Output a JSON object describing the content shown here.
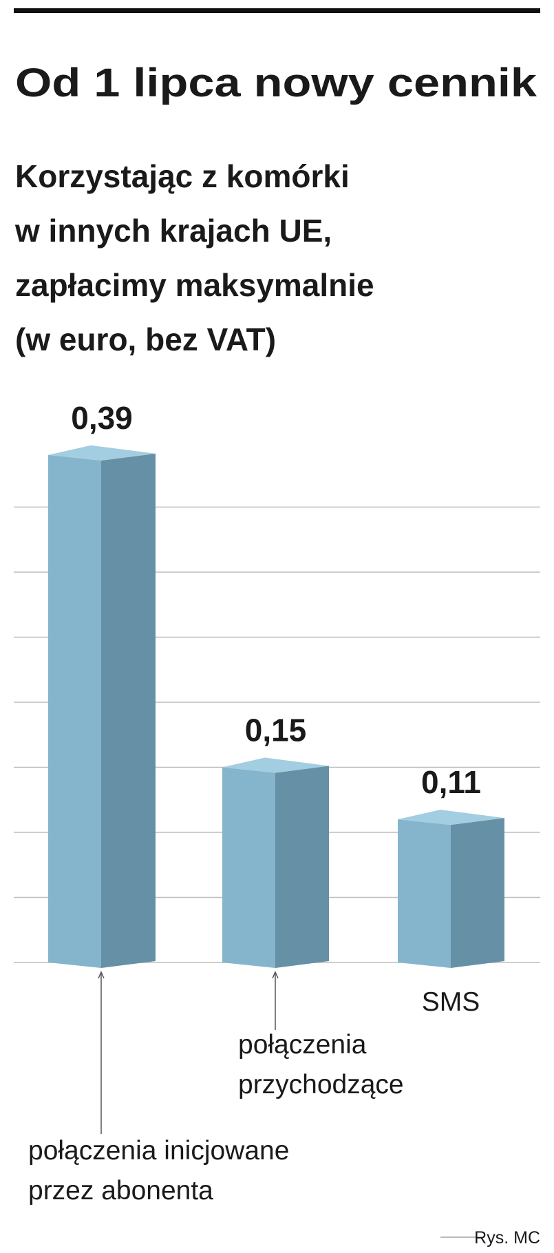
{
  "chart_data": {
    "type": "bar3d",
    "title": "Od 1 lipca nowy cennik",
    "subtitle": [
      "Korzystając z komórki",
      "w innych krajach UE,",
      "zapłacimy maksymalnie",
      "(w euro, bez VAT)"
    ],
    "categories": [
      [
        "połączenia inicjowane",
        "przez abonenta"
      ],
      [
        "połączenia",
        "przychodzące"
      ],
      [
        "SMS"
      ]
    ],
    "values": [
      0.39,
      0.15,
      0.11
    ],
    "value_labels": [
      "0,39",
      "0,15",
      "0,11"
    ],
    "ylim": [
      0,
      0.4
    ],
    "yticks": [
      0,
      0.05,
      0.1,
      0.15,
      0.2,
      0.25,
      0.3,
      0.35
    ],
    "grid": true,
    "color": "#85b5cc",
    "source": "Rys. MC"
  }
}
